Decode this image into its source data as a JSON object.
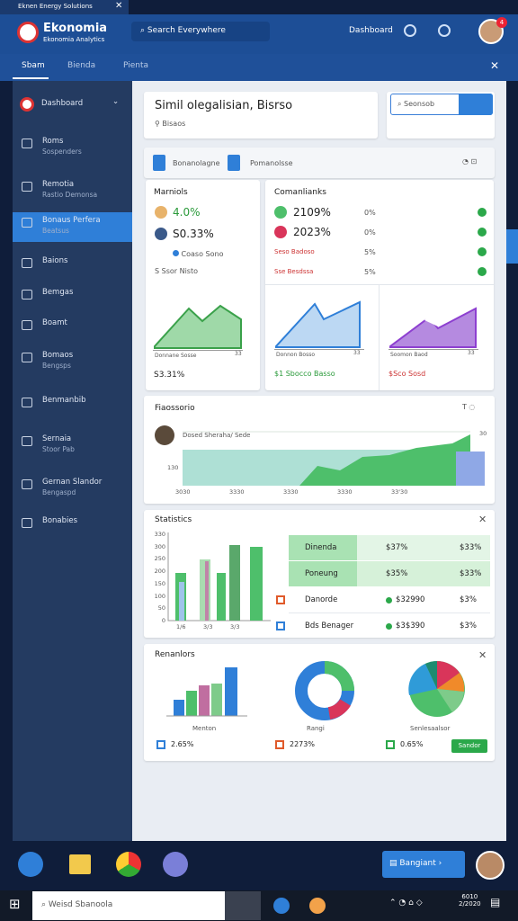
{
  "window_title": "Eknen Energy Solutions",
  "app": {
    "name": "Ekonomia",
    "subtitle": "Ekonomia Analytics"
  },
  "search": "Search Everywhere",
  "header_link": "Dashboard",
  "notification_count": "4",
  "tabs": [
    "Sbam",
    "Bienda",
    "Pienta"
  ],
  "sidebar": {
    "header": "Dashboard",
    "items": [
      {
        "label": "Roms",
        "sub": "Sospenders"
      },
      {
        "label": "Remotia",
        "sub": "Rastio Demonsa"
      },
      {
        "label": "Bonaus Perfera",
        "sub": "Beatsus"
      },
      {
        "label": "Baions"
      },
      {
        "label": "Bemgas"
      },
      {
        "label": "Boamt"
      },
      {
        "label": "Bomaos",
        "sub": "Bengsps"
      },
      {
        "label": "Benmanbib"
      },
      {
        "label": "Sernaia",
        "sub": "Stoor Pab"
      },
      {
        "label": "Gernan Slandor",
        "sub": "Bengaspd"
      },
      {
        "label": "Bonabies"
      }
    ]
  },
  "welcome": {
    "title": "Simil olegalisian,  Bisrso",
    "sub": "Bisaos"
  },
  "search_widget": "Seonsob",
  "toolbar": {
    "button": "Bonanolagne",
    "label": "Pomanolsse"
  },
  "metrics": {
    "title": "Marniols",
    "rows": [
      "4.0%",
      "S0.33%",
      "Coaso Sono"
    ],
    "link": "S Ssor Nisto",
    "chart_caption": "Donnane Sosse",
    "chart_tick": "33",
    "footer": "S3.31%"
  },
  "comparisons": {
    "title": "Comanlianks",
    "rows": [
      {
        "label": "2109%",
        "value": "0%"
      },
      {
        "label": "2023%",
        "value": "0%"
      },
      {
        "label": "Seso Badoso",
        "value": "5%"
      },
      {
        "label": "Sse Besdssa",
        "value": "5%"
      }
    ],
    "charts": [
      {
        "caption": "Donnon Bosso",
        "tick": "33",
        "footer": "$1 Sbocco Basso"
      },
      {
        "caption": "Soomon Baod",
        "tick": "33",
        "footer": "$Sco Sosd"
      }
    ]
  },
  "forecast": {
    "title": "Fiaossorio",
    "caption": "Dosed Sheraha/ Sede",
    "yticks": [
      "30",
      "130"
    ],
    "xticks": [
      "3030",
      "3330",
      "3330",
      "3330",
      "33'30"
    ]
  },
  "statistics": {
    "title": "Statistics",
    "yticks": [
      "330",
      "300",
      "250",
      "200",
      "150",
      "100",
      "50",
      "0"
    ],
    "xticks": [
      "1/6",
      "3/3",
      "3/3"
    ],
    "rows": [
      [
        "Dinenda",
        "$37%",
        "$33%"
      ],
      [
        "Poneung",
        "$35%",
        "$33%"
      ],
      [
        "Danorde",
        "$32990",
        "$3%"
      ],
      [
        "Bds Benager",
        "$3$390",
        "$3%"
      ]
    ]
  },
  "reports": {
    "title": "Renanlors",
    "captions": [
      "Menton",
      "Rangi",
      "Senlesaalsor"
    ],
    "footers": [
      "2.65%",
      "2273%",
      "0.65%"
    ],
    "button": "Sandor"
  },
  "dock_button": "Bangiant",
  "taskbar": {
    "search": "Weisd Sbanoola",
    "time": "6010",
    "date": "2/2020"
  }
}
